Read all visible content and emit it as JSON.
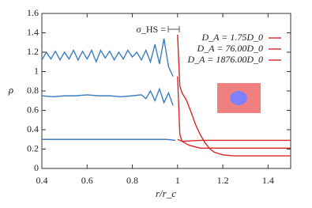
{
  "chart_data": {
    "type": "line",
    "x_label": "r/r_c",
    "y_label": "ρ",
    "annotation": "σ_HS =",
    "xlim": [
      0.4,
      1.5
    ],
    "ylim": [
      0,
      1.6
    ],
    "xticks": [
      0.4,
      0.6,
      0.8,
      1,
      1.2,
      1.4
    ],
    "yticks": [
      0,
      0.2,
      0.4,
      0.6,
      0.8,
      1,
      1.2,
      1.4,
      1.6
    ],
    "series": [
      {
        "color": "#3b7dbf",
        "x": [
          0.4,
          0.42,
          0.44,
          0.46,
          0.48,
          0.5,
          0.52,
          0.54,
          0.56,
          0.58,
          0.6,
          0.62,
          0.64,
          0.66,
          0.68,
          0.7,
          0.72,
          0.74,
          0.76,
          0.78,
          0.8,
          0.82,
          0.84,
          0.86,
          0.88,
          0.9,
          0.92,
          0.94,
          0.96,
          0.98
        ],
        "values": [
          1.12,
          1.2,
          1.13,
          1.21,
          1.12,
          1.2,
          1.13,
          1.22,
          1.12,
          1.21,
          1.13,
          1.22,
          1.1,
          1.22,
          1.14,
          1.21,
          1.12,
          1.2,
          1.13,
          1.22,
          1.15,
          1.2,
          1.12,
          1.22,
          1.1,
          1.28,
          1.08,
          1.34,
          1.05,
          0.95
        ]
      },
      {
        "color": "#3b7dbf",
        "x": [
          0.4,
          0.45,
          0.5,
          0.55,
          0.6,
          0.65,
          0.7,
          0.75,
          0.8,
          0.84,
          0.86,
          0.88,
          0.9,
          0.92,
          0.94,
          0.96,
          0.98
        ],
        "values": [
          0.75,
          0.74,
          0.75,
          0.75,
          0.76,
          0.75,
          0.75,
          0.74,
          0.75,
          0.76,
          0.72,
          0.8,
          0.7,
          0.82,
          0.68,
          0.78,
          0.65
        ]
      },
      {
        "color": "#3b7dbf",
        "x": [
          0.4,
          0.5,
          0.6,
          0.7,
          0.8,
          0.9,
          0.95,
          0.99
        ],
        "values": [
          0.3,
          0.3,
          0.3,
          0.3,
          0.3,
          0.3,
          0.3,
          0.29
        ]
      },
      {
        "name": "D_A = 1.75D_0",
        "color": "#d62728",
        "x": [
          1.0,
          1.01,
          1.02,
          1.04,
          1.06,
          1.08,
          1.1,
          1.12,
          1.14,
          1.16,
          1.2,
          1.25,
          1.3,
          1.4,
          1.5
        ],
        "values": [
          1.38,
          0.85,
          0.78,
          0.7,
          0.58,
          0.45,
          0.35,
          0.27,
          0.21,
          0.17,
          0.14,
          0.13,
          0.13,
          0.13,
          0.13
        ]
      },
      {
        "name": "D_A = 76.00D_0",
        "color": "#d62728",
        "x": [
          1.0,
          1.01,
          1.02,
          1.05,
          1.1,
          1.2,
          1.5
        ],
        "values": [
          0.95,
          0.35,
          0.28,
          0.24,
          0.21,
          0.21,
          0.21
        ]
      },
      {
        "name": "D_A = 1876.00D_0",
        "color": "#d62728",
        "x": [
          1.0,
          1.02,
          1.1,
          1.5
        ],
        "values": [
          0.3,
          0.28,
          0.29,
          0.29
        ]
      }
    ]
  }
}
